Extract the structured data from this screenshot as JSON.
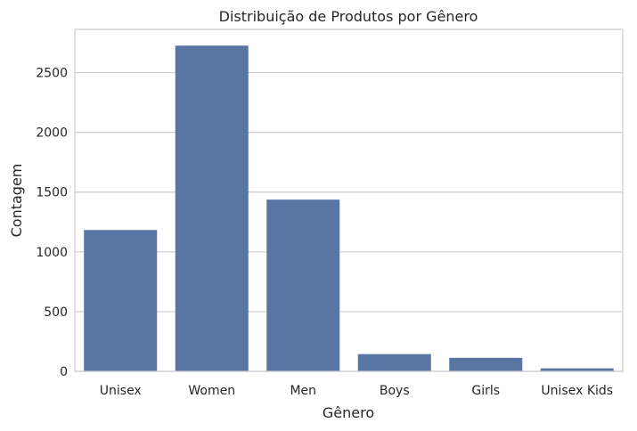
{
  "chart_data": {
    "type": "bar",
    "title": "Distribuição de Produtos por Gênero",
    "xlabel": "Gênero",
    "ylabel": "Contagem",
    "categories": [
      "Unisex",
      "Women",
      "Men",
      "Boys",
      "Girls",
      "Unisex Kids"
    ],
    "values": [
      1183,
      2726,
      1437,
      144,
      113,
      25
    ],
    "ylim": [
      0,
      2862
    ],
    "yticks": [
      0,
      500,
      1000,
      1500,
      2000,
      2500
    ],
    "grid": "horizontal",
    "legend": "none",
    "colors": {
      "bar": "#5975a4",
      "grid": "#cccccc",
      "frame": "#cccccc"
    }
  }
}
